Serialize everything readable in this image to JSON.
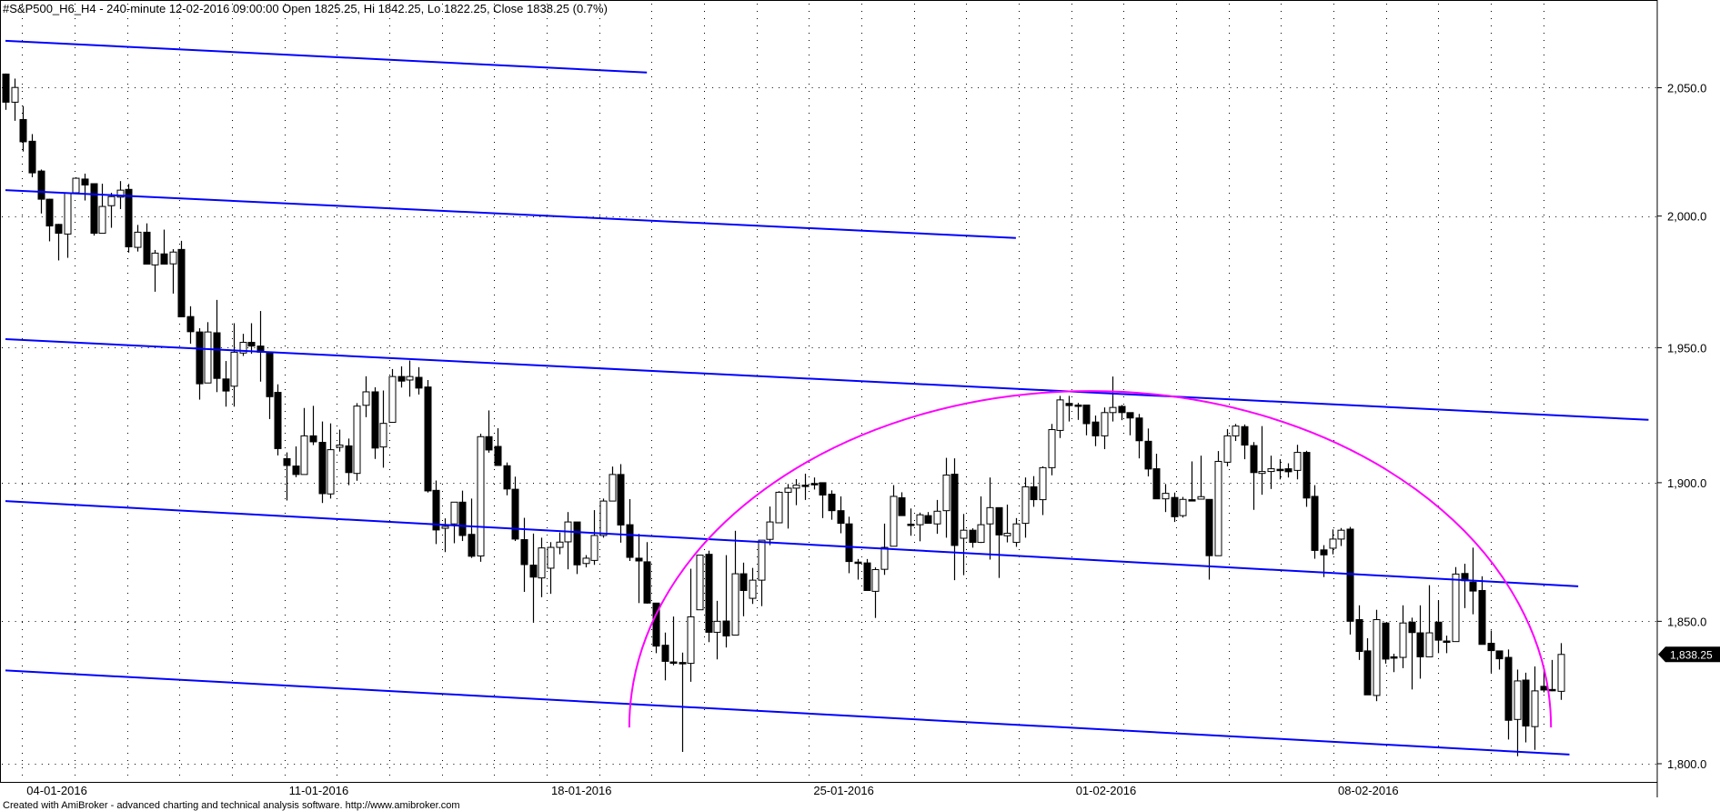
{
  "header": {
    "title": "#S&P500_H6_H4 - 240-minute 12-02-2016 09:00:00 Open 1825.25, Hi 1842.25, Lo 1822.25, Close 1838.25 (0.7%)"
  },
  "footer": {
    "text": "Created with AmiBroker - advanced charting and technical analysis software. http://www.amibroker.com"
  },
  "colors": {
    "trendline": "#0000ff",
    "arc": "#ff00ff",
    "up_candle_fill": "#ffffff",
    "down_candle_fill": "#000000",
    "price_label_bg": "#000000"
  },
  "chart_data": {
    "type": "candlestick",
    "symbol": "#S&P500_H6_H4",
    "interval": "240-minute",
    "y_scale": "log",
    "ylim": [
      1796,
      2072
    ],
    "grid": "dotted",
    "y_ticks": [
      1800,
      1850,
      1900,
      1950,
      2000,
      2050
    ],
    "y_tick_labels": [
      "1,800.0",
      "1,850.0",
      "1,900.0",
      "1,950.0",
      "2,000.0",
      "2,050.0"
    ],
    "x_tick_labels": [
      {
        "label": "04-01-2016",
        "day_index": 0
      },
      {
        "label": "11-01-2016",
        "day_index": 5
      },
      {
        "label": "18-01-2016",
        "day_index": 10
      },
      {
        "label": "25-01-2016",
        "day_index": 15
      },
      {
        "label": "01-02-2016",
        "day_index": 20
      },
      {
        "label": "08-02-2016",
        "day_index": 25
      }
    ],
    "last_price_label": "1,838.25",
    "ohlc": [
      [
        2055.4,
        2055.6,
        2041.3,
        2044.3
      ],
      [
        2044.3,
        2053.6,
        2037,
        2050.1
      ],
      [
        2037.5,
        2042.8,
        2025,
        2028.8
      ],
      [
        2029,
        2031.8,
        2015,
        2016.7
      ],
      [
        2017.4,
        2018,
        2001,
        2006.5
      ],
      [
        2006.5,
        2006.7,
        1990.3,
        1996.2
      ],
      [
        1996.8,
        1997,
        1983,
        1993.4
      ],
      [
        1993.1,
        2008.9,
        1984,
        2008.9
      ],
      [
        2009,
        2015,
        2009,
        2014.6
      ],
      [
        2014.3,
        2016.4,
        2006,
        2012
      ],
      [
        2012.5,
        2012.5,
        1992.5,
        1993.4
      ],
      [
        1993.4,
        2012.5,
        1993.4,
        2003.7
      ],
      [
        2004,
        2009,
        1995.5,
        2007.5
      ],
      [
        2007.3,
        2013.5,
        2002.7,
        2010
      ],
      [
        2010.3,
        2012.4,
        1986,
        1988.2
      ],
      [
        1988,
        1996.6,
        1986.4,
        1993.8
      ],
      [
        1993.8,
        1997.2,
        1981.6,
        1981.6
      ],
      [
        1981.3,
        1987,
        1971.1,
        1985.8
      ],
      [
        1985.5,
        1994.8,
        1981.6,
        1981.6
      ],
      [
        1981.7,
        1987.3,
        1970.4,
        1986.2
      ],
      [
        1987.2,
        1990.5,
        1961.6,
        1961.6
      ],
      [
        1961.7,
        1965.6,
        1951.5,
        1956
      ],
      [
        1955.9,
        1957.3,
        1930.6,
        1936.5
      ],
      [
        1936.8,
        1959.6,
        1936.8,
        1955.9
      ],
      [
        1955.6,
        1968,
        1933.4,
        1938.5
      ],
      [
        1938.3,
        1945,
        1928,
        1933.8
      ],
      [
        1935.6,
        1959.2,
        1928,
        1948.3
      ],
      [
        1948,
        1955.2,
        1946.9,
        1952
      ],
      [
        1952,
        1959.2,
        1947.7,
        1950.6
      ],
      [
        1950.6,
        1963.8,
        1937.3,
        1948.3
      ],
      [
        1948,
        1948,
        1923.4,
        1931.7
      ],
      [
        1933.3,
        1936.3,
        1910,
        1912.5
      ],
      [
        1908.8,
        1911.1,
        1893.5,
        1906.3
      ],
      [
        1906.1,
        1913.3,
        1902,
        1903
      ],
      [
        1903,
        1927.5,
        1903,
        1917.2
      ],
      [
        1917.2,
        1928.3,
        1913.8,
        1915
      ],
      [
        1914.8,
        1922.5,
        1892.6,
        1896
      ],
      [
        1895.9,
        1921.8,
        1894.2,
        1912.1
      ],
      [
        1913,
        1919.5,
        1911.4,
        1913.8
      ],
      [
        1913.5,
        1916.2,
        1899.1,
        1903.7
      ],
      [
        1903.4,
        1929.3,
        1900.7,
        1928.2
      ],
      [
        1928.5,
        1939.3,
        1924.1,
        1933.5
      ],
      [
        1933.5,
        1935.2,
        1908.7,
        1912.7
      ],
      [
        1913.1,
        1934,
        1905.5,
        1921.8
      ],
      [
        1922.2,
        1942,
        1922.2,
        1939.2
      ],
      [
        1939.2,
        1943,
        1935.1,
        1937.5
      ],
      [
        1937.9,
        1945.2,
        1931.7,
        1939.2
      ],
      [
        1938.9,
        1942.7,
        1932.5,
        1934.9
      ],
      [
        1935.3,
        1937.9,
        1896.4,
        1897
      ],
      [
        1897.2,
        1900.8,
        1877.7,
        1882.8
      ],
      [
        1883.4,
        1887,
        1874.8,
        1884.1
      ],
      [
        1885,
        1892.9,
        1878,
        1892.9
      ],
      [
        1892.9,
        1897.1,
        1878.8,
        1880.8
      ],
      [
        1881.2,
        1894.2,
        1872.7,
        1873.3
      ],
      [
        1873.4,
        1918,
        1871.3,
        1916.9
      ],
      [
        1916.9,
        1926.6,
        1911,
        1912
      ],
      [
        1913.3,
        1920,
        1906.3,
        1906.3
      ],
      [
        1906.2,
        1907.4,
        1895.4,
        1897.7
      ],
      [
        1897.6,
        1902.2,
        1878.8,
        1879.5
      ],
      [
        1879.3,
        1887.2,
        1860.5,
        1870.3
      ],
      [
        1870.1,
        1881.5,
        1849.5,
        1865.8
      ],
      [
        1865.5,
        1880,
        1858.6,
        1876.3
      ],
      [
        1869,
        1878.4,
        1859.8,
        1876.5
      ],
      [
        1876.5,
        1881.9,
        1874,
        1878.4
      ],
      [
        1878.5,
        1889.3,
        1868.6,
        1885.7
      ],
      [
        1885.7,
        1885.7,
        1866.9,
        1870.2
      ],
      [
        1870.7,
        1873.7,
        1869.3,
        1872.6
      ],
      [
        1871.8,
        1890,
        1870.2,
        1880.8
      ],
      [
        1880.8,
        1894.2,
        1880,
        1893.3
      ],
      [
        1893.3,
        1905.9,
        1893.3,
        1903
      ],
      [
        1903,
        1906.8,
        1878.2,
        1884.6
      ],
      [
        1884.7,
        1894,
        1871.6,
        1872.9
      ],
      [
        1872.6,
        1881.4,
        1856.5,
        1871.6
      ],
      [
        1871.3,
        1878.4,
        1856.3,
        1856.5
      ],
      [
        1856.5,
        1856.5,
        1838.7,
        1841.2
      ],
      [
        1841.5,
        1846,
        1829.1,
        1835.8
      ],
      [
        1835.6,
        1851.7,
        1834.4,
        1835.6
      ],
      [
        1835.4,
        1838.9,
        1804.1,
        1835.1
      ],
      [
        1835.1,
        1868.8,
        1828.6,
        1851.6
      ],
      [
        1854.1,
        1873.7,
        1854.1,
        1873.7
      ],
      [
        1874,
        1875.3,
        1842.6,
        1846.1
      ],
      [
        1846.1,
        1857.3,
        1836.5,
        1850
      ],
      [
        1850.1,
        1873.7,
        1840.7,
        1844.8
      ],
      [
        1845.1,
        1882.5,
        1845.1,
        1867
      ],
      [
        1867,
        1871,
        1851.8,
        1861
      ],
      [
        1858.2,
        1869.1,
        1856.2,
        1864.7
      ],
      [
        1864.7,
        1879.1,
        1855.4,
        1879.1
      ],
      [
        1879.4,
        1891.3,
        1877.3,
        1885.7
      ],
      [
        1885.4,
        1896.9,
        1885.4,
        1896.5
      ],
      [
        1896.5,
        1899.5,
        1883.3,
        1898
      ],
      [
        1898,
        1901.3,
        1891.8,
        1899.1
      ],
      [
        1899.1,
        1903.3,
        1893.7,
        1899.1
      ],
      [
        1899.7,
        1901.9,
        1897.5,
        1899.6
      ],
      [
        1900,
        1900,
        1887.1,
        1895.5
      ],
      [
        1895.8,
        1897.2,
        1886.5,
        1889.8
      ],
      [
        1889.8,
        1895,
        1881.6,
        1885.2
      ],
      [
        1885,
        1887.6,
        1867.2,
        1871.4
      ],
      [
        1871.2,
        1872.3,
        1864.9,
        1871.2
      ],
      [
        1870.9,
        1872.3,
        1861,
        1861
      ],
      [
        1860.7,
        1869.3,
        1851.2,
        1868.5
      ],
      [
        1868.6,
        1885.1,
        1866.6,
        1876.5
      ],
      [
        1876.9,
        1899.1,
        1876.9,
        1895
      ],
      [
        1894.5,
        1896.5,
        1888,
        1888
      ],
      [
        1884.9,
        1890.6,
        1880.7,
        1884.9
      ],
      [
        1884.7,
        1889.1,
        1878.7,
        1888.3
      ],
      [
        1888,
        1889.3,
        1885.2,
        1885.2
      ],
      [
        1885,
        1893.7,
        1881.4,
        1889.6
      ],
      [
        1889.8,
        1909.1,
        1880,
        1902.8
      ],
      [
        1903.1,
        1908.9,
        1864.7,
        1877.2
      ],
      [
        1879.8,
        1888.6,
        1866.5,
        1882.7
      ],
      [
        1882.7,
        1883.4,
        1876.4,
        1878.3
      ],
      [
        1878.3,
        1895,
        1878.1,
        1884.7
      ],
      [
        1885,
        1901.9,
        1872.1,
        1890.9
      ],
      [
        1890.9,
        1890.9,
        1865.5,
        1881
      ],
      [
        1880.7,
        1892,
        1878.3,
        1881.6
      ],
      [
        1878.3,
        1887.1,
        1876.7,
        1885
      ],
      [
        1885.2,
        1901.9,
        1880,
        1898.5
      ],
      [
        1898.5,
        1902.4,
        1891.2,
        1893.8
      ],
      [
        1893.8,
        1906,
        1888.2,
        1905.5
      ],
      [
        1905.5,
        1921.6,
        1902.7,
        1919.5
      ],
      [
        1919.2,
        1932,
        1916.4,
        1930.5
      ],
      [
        1929.2,
        1932,
        1922.5,
        1928.4
      ],
      [
        1928.6,
        1929.4,
        1923.1,
        1928.6
      ],
      [
        1928.6,
        1928.6,
        1917.4,
        1921.7
      ],
      [
        1922.3,
        1924.7,
        1913.4,
        1917.2
      ],
      [
        1917.2,
        1927.7,
        1912.3,
        1925.8
      ],
      [
        1925.8,
        1939.2,
        1922.5,
        1927.7
      ],
      [
        1928.1,
        1928.6,
        1923,
        1925.8
      ],
      [
        1925.8,
        1925.8,
        1917.4,
        1923.8
      ],
      [
        1923.8,
        1925.3,
        1908.9,
        1915.4
      ],
      [
        1915.2,
        1919.9,
        1902.3,
        1905
      ],
      [
        1905.1,
        1910.6,
        1894.1,
        1894.1
      ],
      [
        1894.1,
        1899.5,
        1889.3,
        1896.1
      ],
      [
        1894.6,
        1896.4,
        1885.7,
        1887.6
      ],
      [
        1888,
        1894.8,
        1887.3,
        1893.9
      ],
      [
        1893.8,
        1907.8,
        1893.4,
        1893.8
      ],
      [
        1894,
        1909.9,
        1894,
        1894.9
      ],
      [
        1893.9,
        1893.9,
        1864.9,
        1873.5
      ],
      [
        1873.5,
        1911.6,
        1873.5,
        1907.8
      ],
      [
        1907.5,
        1919.7,
        1906,
        1917.2
      ],
      [
        1917.2,
        1921.6,
        1915.3,
        1920.8
      ],
      [
        1920.6,
        1921.4,
        1908.6,
        1913.8
      ],
      [
        1913.6,
        1914.9,
        1890.1,
        1903.7
      ],
      [
        1903.4,
        1920.8,
        1895.6,
        1904.1
      ],
      [
        1904.1,
        1909.9,
        1897.7,
        1905.1
      ],
      [
        1904.9,
        1908.6,
        1901.2,
        1904.9
      ],
      [
        1905.1,
        1907.1,
        1901.9,
        1904
      ],
      [
        1904.5,
        1913.9,
        1901.2,
        1911.1
      ],
      [
        1911.1,
        1911.7,
        1891.2,
        1894.4
      ],
      [
        1895,
        1899.1,
        1872.4,
        1875.4
      ],
      [
        1875.6,
        1877.3,
        1865.8,
        1873.8
      ],
      [
        1876.2,
        1883,
        1874,
        1879.5
      ],
      [
        1879.5,
        1883.5,
        1877,
        1882.7
      ],
      [
        1883.1,
        1883.9,
        1845.3,
        1850
      ],
      [
        1850.6,
        1855.7,
        1836.3,
        1839.3
      ],
      [
        1839.5,
        1844,
        1824,
        1824
      ],
      [
        1823.8,
        1854.1,
        1821.8,
        1850.6
      ],
      [
        1849.4,
        1849.4,
        1835,
        1836.6
      ],
      [
        1837.4,
        1838.5,
        1832,
        1837.4
      ],
      [
        1837.2,
        1855.7,
        1833.4,
        1849.4
      ],
      [
        1849.7,
        1851.3,
        1825.9,
        1846
      ],
      [
        1845.9,
        1855.7,
        1829.7,
        1837.4
      ],
      [
        1837.4,
        1862.9,
        1837.4,
        1845.9
      ],
      [
        1849.7,
        1857.5,
        1838.7,
        1843.3
      ],
      [
        1843,
        1844.9,
        1838.7,
        1843
      ],
      [
        1842.8,
        1869.4,
        1842.8,
        1866.9
      ],
      [
        1867.1,
        1870.6,
        1854.7,
        1864.5
      ],
      [
        1864,
        1876.4,
        1852.5,
        1860.8
      ],
      [
        1861,
        1866.1,
        1841.8,
        1841.8
      ],
      [
        1842.2,
        1846.7,
        1831.8,
        1839.6
      ],
      [
        1839.5,
        1839.5,
        1832.9,
        1836.7
      ],
      [
        1837.2,
        1840,
        1808.4,
        1815.1
      ],
      [
        1815.4,
        1832.9,
        1802.6,
        1828.9
      ],
      [
        1829.2,
        1831.8,
        1807.4,
        1813.1
      ],
      [
        1812.9,
        1834,
        1804.8,
        1825.4
      ],
      [
        1827,
        1832.9,
        1824.9,
        1825.7
      ],
      [
        1825.9,
        1836.3,
        1825.3,
        1825.9
      ],
      [
        1825.25,
        1842.25,
        1822.25,
        1838.25
      ]
    ],
    "trendlines": [
      {
        "start": [
          1,
          2068.6
        ],
        "end": [
          74,
          2056
        ]
      },
      {
        "start": [
          1,
          2010
        ],
        "end": [
          116,
          1991.6
        ]
      },
      {
        "start": [
          1,
          1953.2
        ],
        "end": [
          188,
          1923.1
        ]
      },
      {
        "start": [
          1,
          1893.3
        ],
        "end": [
          180,
          1862.5
        ]
      },
      {
        "start": [
          1,
          1832.6
        ],
        "end": [
          179,
          1803.2
        ]
      }
    ],
    "arc": {
      "start": [
        72,
        1812.6
      ],
      "top": [
        124.4,
        1933.8
      ],
      "end": [
        176.9,
        1812.6
      ]
    }
  }
}
